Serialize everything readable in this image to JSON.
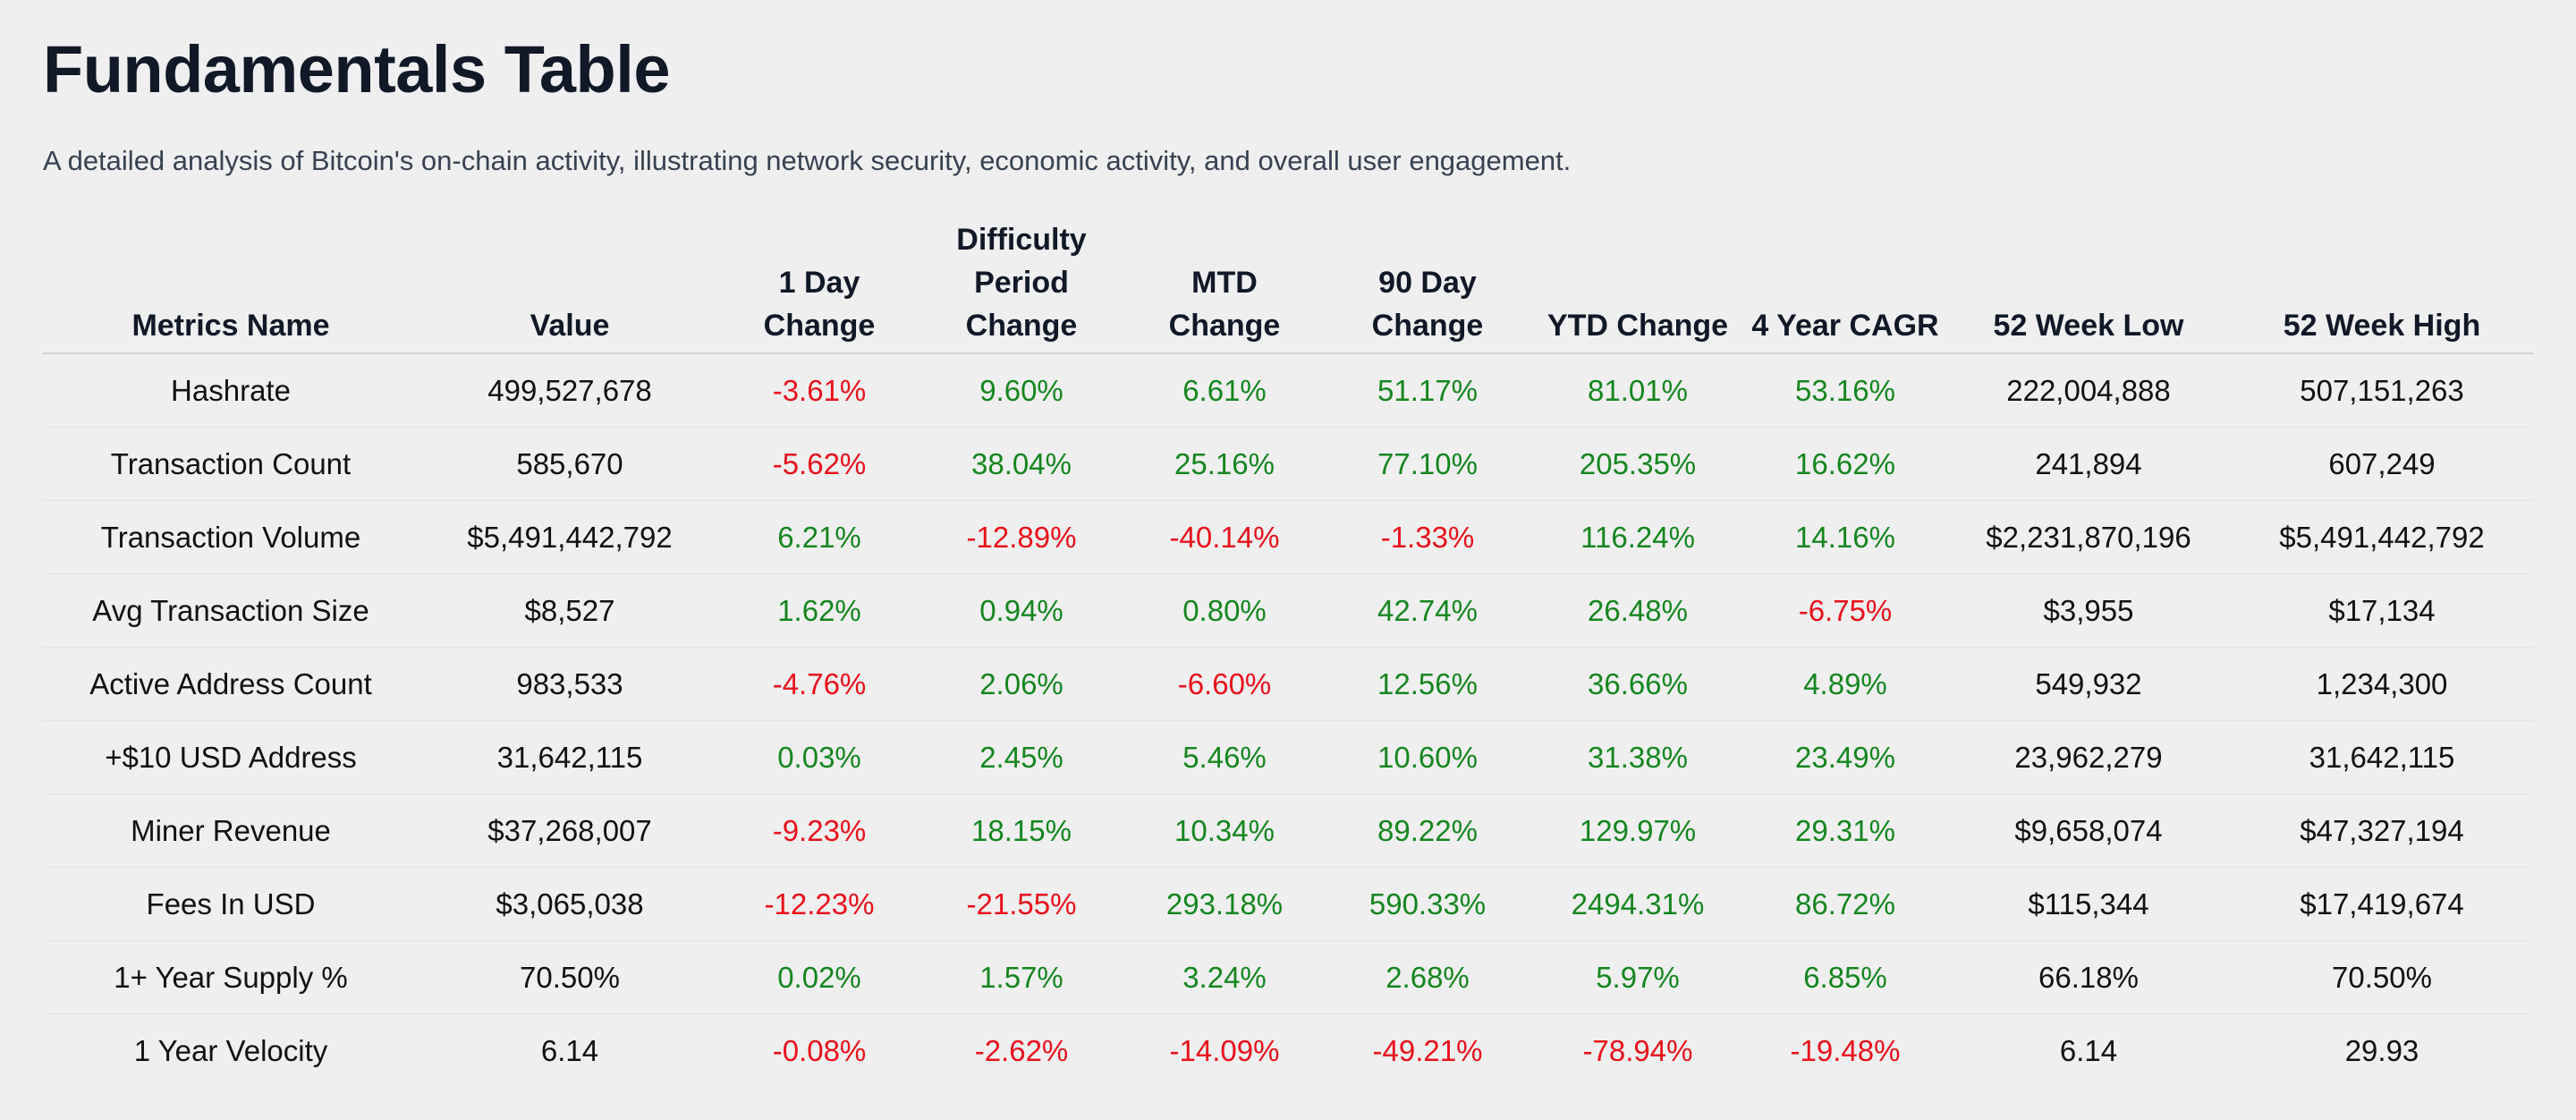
{
  "page": {
    "title": "Fundamentals Table",
    "subtitle": "A detailed analysis of Bitcoin's on-chain activity, illustrating network security, economic activity, and overall user engagement."
  },
  "colors": {
    "positive": "#15861f",
    "negative": "#e8111b",
    "background": "#efefef"
  },
  "table": {
    "columns": [
      "Metrics Name",
      "Value",
      "1 Day Change",
      "Difficulty Period Change",
      "MTD Change",
      "90 Day Change",
      "YTD Change",
      "4 Year CAGR",
      "52 Week Low",
      "52 Week High"
    ],
    "rows": [
      [
        "Hashrate",
        "499,527,678",
        "-3.61%",
        "9.60%",
        "6.61%",
        "51.17%",
        "81.01%",
        "53.16%",
        "222,004,888",
        "507,151,263"
      ],
      [
        "Transaction Count",
        "585,670",
        "-5.62%",
        "38.04%",
        "25.16%",
        "77.10%",
        "205.35%",
        "16.62%",
        "241,894",
        "607,249"
      ],
      [
        "Transaction Volume",
        "$5,491,442,792",
        "6.21%",
        "-12.89%",
        "-40.14%",
        "-1.33%",
        "116.24%",
        "14.16%",
        "$2,231,870,196",
        "$5,491,442,792"
      ],
      [
        "Avg Transaction Size",
        "$8,527",
        "1.62%",
        "0.94%",
        "0.80%",
        "42.74%",
        "26.48%",
        "-6.75%",
        "$3,955",
        "$17,134"
      ],
      [
        "Active Address Count",
        "983,533",
        "-4.76%",
        "2.06%",
        "-6.60%",
        "12.56%",
        "36.66%",
        "4.89%",
        "549,932",
        "1,234,300"
      ],
      [
        "+$10 USD Address",
        "31,642,115",
        "0.03%",
        "2.45%",
        "5.46%",
        "10.60%",
        "31.38%",
        "23.49%",
        "23,962,279",
        "31,642,115"
      ],
      [
        "Miner Revenue",
        "$37,268,007",
        "-9.23%",
        "18.15%",
        "10.34%",
        "89.22%",
        "129.97%",
        "29.31%",
        "$9,658,074",
        "$47,327,194"
      ],
      [
        "Fees In USD",
        "$3,065,038",
        "-12.23%",
        "-21.55%",
        "293.18%",
        "590.33%",
        "2494.31%",
        "86.72%",
        "$115,344",
        "$17,419,674"
      ],
      [
        "1+ Year Supply %",
        "70.50%",
        "0.02%",
        "1.57%",
        "3.24%",
        "2.68%",
        "5.97%",
        "6.85%",
        "66.18%",
        "70.50%"
      ],
      [
        "1 Year Velocity",
        "6.14",
        "-0.08%",
        "-2.62%",
        "-14.09%",
        "-49.21%",
        "-78.94%",
        "-19.48%",
        "6.14",
        "29.93"
      ]
    ]
  }
}
